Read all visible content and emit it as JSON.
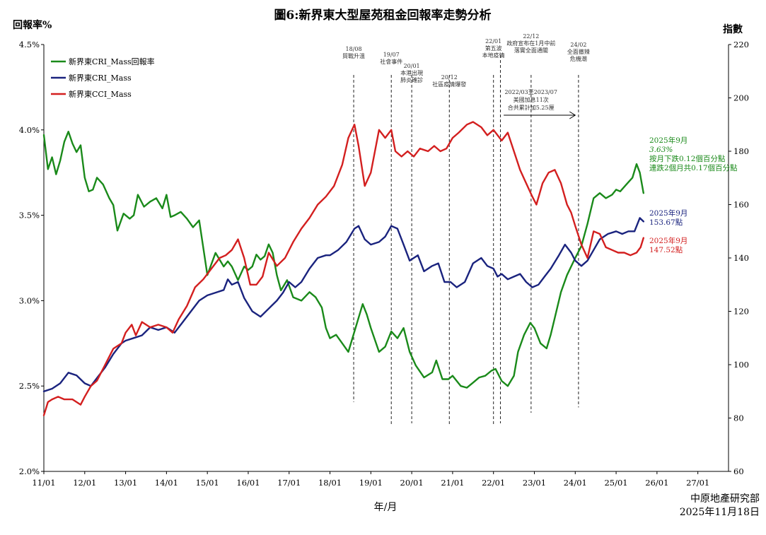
{
  "chart_data": {
    "type": "line",
    "title": "圖6:新界東大型屋苑租金回報率走勢分析",
    "ylabel_left": "回報率%",
    "ylabel_right": "指數",
    "xlabel": "年/月",
    "credit": [
      "中原地產研究部",
      "2025年11月18日"
    ],
    "xlim": [
      2011.0,
      2027.75
    ],
    "ylim_left": [
      2.0,
      4.5
    ],
    "ylim_right": [
      60,
      220
    ],
    "x_ticks": [
      2011,
      2012,
      2013,
      2014,
      2015,
      2016,
      2017,
      2018,
      2019,
      2020,
      2021,
      2022,
      2023,
      2024,
      2025,
      2026,
      2027
    ],
    "x_tick_labels": [
      "11/01",
      "12/01",
      "13/01",
      "14/01",
      "15/01",
      "16/01",
      "17/01",
      "18/01",
      "19/01",
      "20/01",
      "21/01",
      "22/01",
      "23/01",
      "24/01",
      "25/01",
      "26/01",
      "27/01"
    ],
    "y_left_ticks": [
      2.0,
      2.5,
      3.0,
      3.5,
      4.0,
      4.5
    ],
    "y_left_tick_labels": [
      "2.0%",
      "2.5%",
      "3.0%",
      "3.5%",
      "4.0%",
      "4.5%"
    ],
    "y_right_ticks": [
      60,
      80,
      100,
      120,
      140,
      160,
      180,
      200,
      220
    ],
    "y_right_tick_labels": [
      "60",
      "80",
      "100",
      "120",
      "140",
      "160",
      "180",
      "200",
      "220"
    ],
    "legend": {
      "position": "top-left"
    },
    "series": [
      {
        "name": "新界東CRI_Mass回報率",
        "axis": "left",
        "color": "#1a8a1a",
        "x": [
          2011.0,
          2011.1,
          2011.2,
          2011.3,
          2011.4,
          2011.5,
          2011.6,
          2011.7,
          2011.8,
          2011.9,
          2012.0,
          2012.1,
          2012.2,
          2012.3,
          2012.45,
          2012.6,
          2012.7,
          2012.8,
          2012.95,
          2013.1,
          2013.2,
          2013.3,
          2013.45,
          2013.6,
          2013.75,
          2013.9,
          2014.0,
          2014.1,
          2014.2,
          2014.35,
          2014.5,
          2014.65,
          2014.8,
          2015.0,
          2015.2,
          2015.4,
          2015.5,
          2015.6,
          2015.75,
          2015.9,
          2016.0,
          2016.1,
          2016.2,
          2016.3,
          2016.4,
          2016.5,
          2016.6,
          2016.7,
          2016.8,
          2016.95,
          2017.1,
          2017.3,
          2017.5,
          2017.65,
          2017.8,
          2017.9,
          2018.0,
          2018.15,
          2018.3,
          2018.45,
          2018.6,
          2018.8,
          2018.9,
          2019.0,
          2019.2,
          2019.35,
          2019.5,
          2019.65,
          2019.8,
          2019.95,
          2020.1,
          2020.3,
          2020.5,
          2020.6,
          2020.75,
          2020.9,
          2021.0,
          2021.2,
          2021.35,
          2021.5,
          2021.65,
          2021.8,
          2021.95,
          2022.05,
          2022.2,
          2022.35,
          2022.5,
          2022.6,
          2022.75,
          2022.9,
          2023.0,
          2023.15,
          2023.3,
          2023.4,
          2023.5,
          2023.65,
          2023.8,
          2024.0,
          2024.15,
          2024.3,
          2024.45,
          2024.6,
          2024.75,
          2024.9,
          2025.0,
          2025.1,
          2025.25,
          2025.4,
          2025.5,
          2025.58,
          2025.67
        ],
        "y": [
          3.97,
          3.77,
          3.84,
          3.74,
          3.82,
          3.93,
          3.99,
          3.92,
          3.87,
          3.91,
          3.72,
          3.64,
          3.65,
          3.72,
          3.68,
          3.6,
          3.56,
          3.41,
          3.51,
          3.48,
          3.5,
          3.62,
          3.55,
          3.58,
          3.6,
          3.54,
          3.62,
          3.49,
          3.5,
          3.52,
          3.48,
          3.43,
          3.47,
          3.15,
          3.28,
          3.2,
          3.23,
          3.2,
          3.12,
          3.2,
          3.18,
          3.2,
          3.27,
          3.24,
          3.26,
          3.33,
          3.28,
          3.15,
          3.06,
          3.12,
          3.02,
          3.0,
          3.05,
          3.02,
          2.96,
          2.84,
          2.78,
          2.8,
          2.75,
          2.7,
          2.82,
          2.98,
          2.92,
          2.84,
          2.7,
          2.73,
          2.82,
          2.78,
          2.84,
          2.7,
          2.62,
          2.55,
          2.58,
          2.65,
          2.54,
          2.54,
          2.56,
          2.5,
          2.49,
          2.52,
          2.55,
          2.56,
          2.59,
          2.6,
          2.53,
          2.5,
          2.56,
          2.7,
          2.8,
          2.87,
          2.84,
          2.75,
          2.72,
          2.8,
          2.9,
          3.05,
          3.15,
          3.25,
          3.32,
          3.45,
          3.6,
          3.63,
          3.6,
          3.62,
          3.65,
          3.64,
          3.68,
          3.72,
          3.8,
          3.75,
          3.63
        ]
      },
      {
        "name": "新界東CRI_Mass",
        "axis": "right",
        "color": "#1a237e",
        "x": [
          2011.0,
          2011.2,
          2011.4,
          2011.6,
          2011.8,
          2012.0,
          2012.15,
          2012.3,
          2012.5,
          2012.7,
          2012.9,
          2013.0,
          2013.2,
          2013.4,
          2013.6,
          2013.8,
          2014.0,
          2014.2,
          2014.4,
          2014.6,
          2014.8,
          2015.0,
          2015.2,
          2015.4,
          2015.5,
          2015.6,
          2015.75,
          2015.9,
          2016.1,
          2016.3,
          2016.5,
          2016.7,
          2016.85,
          2017.0,
          2017.15,
          2017.3,
          2017.5,
          2017.7,
          2017.9,
          2018.0,
          2018.2,
          2018.4,
          2018.6,
          2018.7,
          2018.85,
          2019.0,
          2019.2,
          2019.35,
          2019.5,
          2019.65,
          2019.8,
          2019.95,
          2020.15,
          2020.3,
          2020.5,
          2020.65,
          2020.8,
          2020.95,
          2021.1,
          2021.3,
          2021.5,
          2021.7,
          2021.85,
          2022.0,
          2022.1,
          2022.2,
          2022.35,
          2022.5,
          2022.65,
          2022.8,
          2022.95,
          2023.1,
          2023.25,
          2023.4,
          2023.6,
          2023.75,
          2023.9,
          2024.0,
          2024.15,
          2024.3,
          2024.45,
          2024.6,
          2024.8,
          2025.0,
          2025.15,
          2025.3,
          2025.45,
          2025.58,
          2025.67
        ],
        "y": [
          90,
          91,
          93,
          97,
          96,
          93,
          92,
          95,
          99,
          104,
          108,
          109,
          110,
          111,
          114,
          113,
          114,
          112,
          116,
          120,
          124,
          126,
          127,
          128,
          132,
          130,
          131,
          125,
          120,
          118,
          121,
          124,
          127,
          131,
          129,
          131,
          136,
          140,
          141,
          141,
          143,
          146,
          151,
          152,
          147,
          145,
          146,
          148,
          152,
          151,
          145,
          139,
          141,
          135,
          137,
          138,
          131,
          131,
          129,
          131,
          138,
          140,
          137,
          136,
          133,
          134,
          132,
          133,
          134,
          131,
          129,
          130,
          133,
          136,
          141,
          145,
          142,
          139,
          137,
          139,
          143,
          147,
          149,
          150,
          149,
          150,
          150,
          155,
          153.67
        ]
      },
      {
        "name": "新界東CCI_Mass",
        "axis": "right",
        "color": "#d31f1f",
        "x": [
          2011.0,
          2011.1,
          2011.2,
          2011.35,
          2011.5,
          2011.7,
          2011.9,
          2012.0,
          2012.15,
          2012.3,
          2012.5,
          2012.7,
          2012.9,
          2013.0,
          2013.15,
          2013.25,
          2013.4,
          2013.6,
          2013.8,
          2014.0,
          2014.15,
          2014.3,
          2014.5,
          2014.7,
          2014.9,
          2015.1,
          2015.3,
          2015.45,
          2015.6,
          2015.75,
          2015.9,
          2016.05,
          2016.2,
          2016.35,
          2016.5,
          2016.7,
          2016.9,
          2017.1,
          2017.3,
          2017.5,
          2017.7,
          2017.9,
          2018.1,
          2018.3,
          2018.45,
          2018.6,
          2018.7,
          2018.85,
          2019.0,
          2019.2,
          2019.35,
          2019.5,
          2019.6,
          2019.75,
          2019.9,
          2020.05,
          2020.2,
          2020.4,
          2020.55,
          2020.7,
          2020.85,
          2021.0,
          2021.15,
          2021.35,
          2021.5,
          2021.7,
          2021.85,
          2022.0,
          2022.2,
          2022.35,
          2022.5,
          2022.65,
          2022.8,
          2022.95,
          2023.05,
          2023.2,
          2023.35,
          2023.5,
          2023.65,
          2023.8,
          2023.9,
          2024.0,
          2024.15,
          2024.3,
          2024.45,
          2024.6,
          2024.75,
          2024.9,
          2025.05,
          2025.2,
          2025.35,
          2025.5,
          2025.6,
          2025.67
        ],
        "y": [
          81,
          86,
          87,
          88,
          87,
          87,
          85,
          88,
          92,
          94,
          100,
          106,
          108,
          112,
          115,
          111,
          116,
          114,
          115,
          114,
          112,
          117,
          122,
          129,
          132,
          136,
          140,
          141,
          143,
          147,
          140,
          130,
          130,
          133,
          142,
          137,
          140,
          146,
          151,
          155,
          160,
          163,
          167,
          175,
          185,
          190,
          182,
          167,
          172,
          188,
          185,
          188,
          180,
          178,
          180,
          178,
          181,
          180,
          182,
          180,
          181,
          185,
          187,
          190,
          191,
          189,
          186,
          188,
          184,
          187,
          180,
          173,
          168,
          163,
          160,
          168,
          172,
          173,
          168,
          160,
          157,
          152,
          145,
          140,
          150,
          149,
          144,
          143,
          142,
          142,
          141,
          142,
          144,
          147.52
        ]
      }
    ],
    "events": [
      {
        "x": 2018.58,
        "lines": [
          "18/08",
          "貿戰升溫"
        ],
        "ybottom": 86
      },
      {
        "x": 2019.5,
        "lines": [
          "19/07",
          "社會事件"
        ],
        "ybottom": 77
      },
      {
        "x": 2020.0,
        "lines": [
          "20/01",
          "本港出現",
          "肺炎確診"
        ],
        "ybottom": 78
      },
      {
        "x": 2020.92,
        "lines": [
          "20/12",
          "社區疫情爆發"
        ],
        "ybottom": 77
      },
      {
        "x": 2022.0,
        "lines": [
          "22/01",
          "第五波",
          "本地疫情"
        ],
        "ybottom": 77
      },
      {
        "x": 2022.17,
        "lines": [],
        "ybottom": 78
      },
      {
        "x": 2022.92,
        "lines": [
          "22/12",
          "政府宣布在1月中前",
          "落實全面通關"
        ],
        "ybottom": 82
      },
      {
        "x": 2024.08,
        "lines": [
          "24/02",
          "全面撤辣",
          "危機潮"
        ],
        "ybottom": 84
      }
    ],
    "rate_annotation": {
      "lines": [
        "2022/03至2023/07",
        "美國加息11次",
        "合共累計加5.25厘"
      ],
      "arrow_from": 2022.25,
      "arrow_to": 2024.0
    },
    "end_labels": [
      {
        "series": "新界東CRI_Mass回報率",
        "color": "#1a8a1a",
        "lines": [
          "2025年9月",
          "3.63%",
          "按月下跌0.12個百分點",
          "連跌2個月共0.17個百分點"
        ]
      },
      {
        "series": "新界東CRI_Mass",
        "color": "#1a237e",
        "lines": [
          "2025年9月",
          "153.67點"
        ]
      },
      {
        "series": "新界東CCI_Mass",
        "color": "#d31f1f",
        "lines": [
          "2025年9月",
          "147.52點"
        ]
      }
    ]
  }
}
